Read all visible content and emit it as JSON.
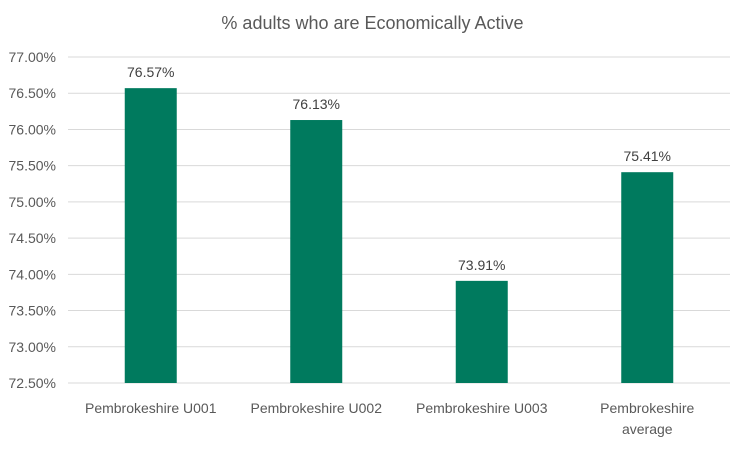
{
  "chart_data": {
    "type": "bar",
    "title": "% adults who are Economically Active",
    "categories": [
      [
        "Pembrokeshire U001"
      ],
      [
        "Pembrokeshire U002"
      ],
      [
        "Pembrokeshire U003"
      ],
      [
        "Pembrokeshire",
        "average"
      ]
    ],
    "values": [
      76.57,
      76.13,
      73.91,
      75.41
    ],
    "data_labels": [
      "76.57%",
      "76.13%",
      "73.91%",
      "75.41%"
    ],
    "ylim": [
      72.5,
      77.0
    ],
    "yticks": [
      72.5,
      73.0,
      73.5,
      74.0,
      74.5,
      75.0,
      75.5,
      76.0,
      76.5,
      77.0
    ],
    "ytick_labels": [
      "72.50%",
      "73.00%",
      "73.50%",
      "74.00%",
      "74.50%",
      "75.00%",
      "75.50%",
      "76.00%",
      "76.50%",
      "77.00%"
    ],
    "xlabel": "",
    "ylabel": "",
    "grid": true,
    "legend": "none",
    "colors": {
      "bar": "#007A5E",
      "grid": "#D9D9D9",
      "text": "#595959"
    }
  }
}
